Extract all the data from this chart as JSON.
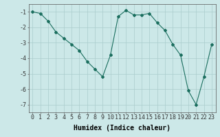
{
  "x": [
    0,
    1,
    2,
    3,
    4,
    5,
    6,
    7,
    8,
    9,
    10,
    11,
    12,
    13,
    14,
    15,
    16,
    17,
    18,
    19,
    20,
    21,
    22,
    23
  ],
  "y": [
    -1.0,
    -1.1,
    -1.6,
    -2.3,
    -2.7,
    -3.1,
    -3.5,
    -4.2,
    -4.7,
    -5.2,
    -3.8,
    -1.3,
    -0.9,
    -1.2,
    -1.2,
    -1.1,
    -1.7,
    -2.2,
    -3.1,
    -3.8,
    -6.1,
    -7.0,
    -5.2,
    -3.1
  ],
  "line_color": "#1a6e5e",
  "marker": "D",
  "markersize": 2.0,
  "linewidth": 0.8,
  "xlabel": "Humidex (Indice chaleur)",
  "xlabel_fontsize": 7,
  "bg_color": "#cce8e8",
  "grid_color": "#aacccc",
  "xlim": [
    -0.5,
    23.5
  ],
  "ylim": [
    -7.5,
    -0.5
  ],
  "yticks": [
    -1,
    -2,
    -3,
    -4,
    -5,
    -6,
    -7
  ],
  "xticks": [
    0,
    1,
    2,
    3,
    4,
    5,
    6,
    7,
    8,
    9,
    10,
    11,
    12,
    13,
    14,
    15,
    16,
    17,
    18,
    19,
    20,
    21,
    22,
    23
  ],
  "tick_fontsize": 6.0
}
